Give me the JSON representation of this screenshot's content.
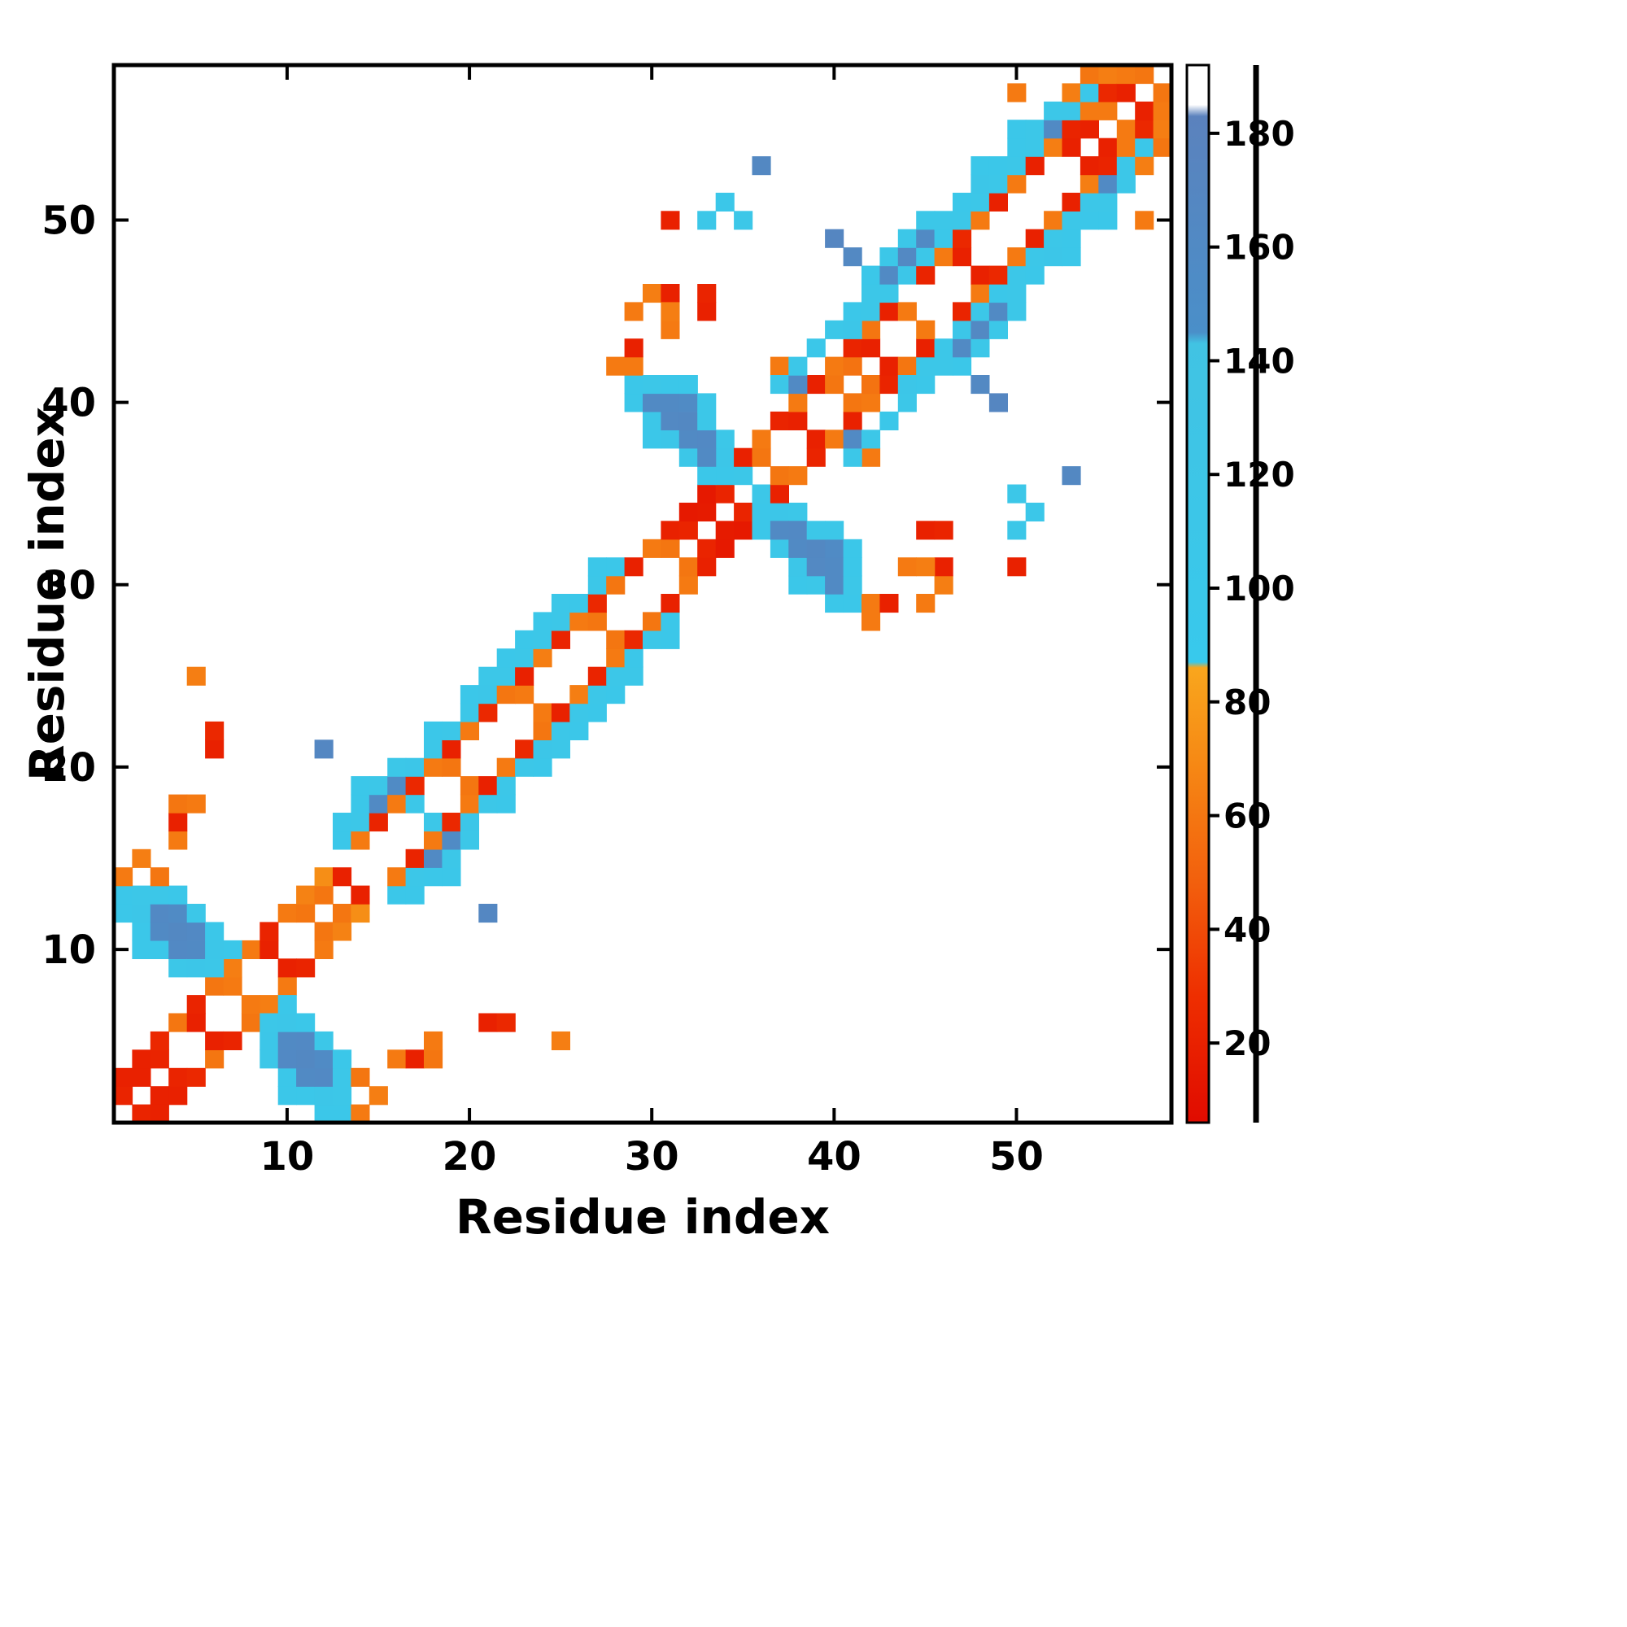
{
  "chart_data": {
    "type": "heatmap",
    "title": "",
    "xlabel": "Residue index",
    "ylabel": "Residue index",
    "x_range": [
      1,
      58
    ],
    "y_range": [
      1,
      58
    ],
    "x_ticks": [
      10,
      20,
      30,
      40,
      50
    ],
    "y_ticks": [
      10,
      20,
      30,
      40,
      50
    ],
    "grid": false,
    "legend": "colorbar-right",
    "symmetric": true,
    "background_value_color": "#ffffff",
    "colorbar": {
      "min": 6,
      "max": 192,
      "ticks": [
        20,
        40,
        60,
        80,
        100,
        120,
        140,
        160,
        180
      ]
    },
    "color_scale": {
      "stops": [
        {
          "v": 6,
          "c": "#e00b00"
        },
        {
          "v": 28,
          "c": "#ee2e00"
        },
        {
          "v": 48,
          "c": "#f25f0d"
        },
        {
          "v": 70,
          "c": "#f68a15"
        },
        {
          "v": 86,
          "c": "#f9a61d"
        },
        {
          "v": 87,
          "c": "#38c9ec"
        },
        {
          "v": 143,
          "c": "#41c3e3"
        },
        {
          "v": 145,
          "c": "#4a8fc9"
        },
        {
          "v": 183,
          "c": "#5b82bd"
        },
        {
          "v": 185,
          "c": "#ffffff"
        },
        {
          "v": 192,
          "c": "#ffffff"
        }
      ]
    },
    "cells": [
      [
        1,
        2,
        22
      ],
      [
        2,
        3,
        20
      ],
      [
        1,
        3,
        20
      ],
      [
        2,
        4,
        20
      ],
      [
        3,
        4,
        22
      ],
      [
        3,
        5,
        24
      ],
      [
        4,
        6,
        60
      ],
      [
        5,
        6,
        20
      ],
      [
        5,
        7,
        22
      ],
      [
        6,
        8,
        60
      ],
      [
        7,
        8,
        62
      ],
      [
        7,
        9,
        64
      ],
      [
        8,
        10,
        62
      ],
      [
        9,
        10,
        20
      ],
      [
        9,
        11,
        22
      ],
      [
        10,
        12,
        62
      ],
      [
        11,
        12,
        60
      ],
      [
        11,
        13,
        66
      ],
      [
        12,
        13,
        60
      ],
      [
        12,
        14,
        72
      ],
      [
        13,
        14,
        20
      ],
      [
        1,
        12,
        108
      ],
      [
        1,
        13,
        104
      ],
      [
        2,
        10,
        104
      ],
      [
        2,
        11,
        106
      ],
      [
        2,
        12,
        112
      ],
      [
        2,
        13,
        110
      ],
      [
        3,
        10,
        108
      ],
      [
        3,
        11,
        160
      ],
      [
        3,
        12,
        162
      ],
      [
        3,
        13,
        110
      ],
      [
        4,
        9,
        110
      ],
      [
        4,
        10,
        162
      ],
      [
        4,
        11,
        166
      ],
      [
        4,
        12,
        158
      ],
      [
        4,
        13,
        108
      ],
      [
        5,
        9,
        112
      ],
      [
        5,
        10,
        160
      ],
      [
        5,
        11,
        162
      ],
      [
        5,
        12,
        110
      ],
      [
        6,
        9,
        110
      ],
      [
        6,
        10,
        112
      ],
      [
        6,
        11,
        108
      ],
      [
        7,
        10,
        108
      ],
      [
        1,
        14,
        62
      ],
      [
        2,
        15,
        64
      ],
      [
        3,
        14,
        60
      ],
      [
        4,
        16,
        62
      ],
      [
        4,
        17,
        20
      ],
      [
        4,
        18,
        60
      ],
      [
        5,
        18,
        62
      ],
      [
        6,
        21,
        20
      ],
      [
        6,
        22,
        24
      ],
      [
        12,
        21,
        168
      ],
      [
        5,
        25,
        64
      ],
      [
        13,
        16,
        108
      ],
      [
        13,
        17,
        106
      ],
      [
        14,
        16,
        62
      ],
      [
        14,
        17,
        110
      ],
      [
        14,
        18,
        108
      ],
      [
        14,
        19,
        106
      ],
      [
        15,
        17,
        22
      ],
      [
        15,
        18,
        160
      ],
      [
        15,
        19,
        110
      ],
      [
        16,
        18,
        62
      ],
      [
        16,
        19,
        158
      ],
      [
        16,
        20,
        110
      ],
      [
        17,
        18,
        110
      ],
      [
        17,
        19,
        24
      ],
      [
        17,
        20,
        112
      ],
      [
        18,
        20,
        62
      ],
      [
        18,
        21,
        110
      ],
      [
        18,
        22,
        108
      ],
      [
        19,
        20,
        60
      ],
      [
        19,
        21,
        20
      ],
      [
        19,
        22,
        110
      ],
      [
        20,
        22,
        62
      ],
      [
        20,
        23,
        110
      ],
      [
        20,
        24,
        108
      ],
      [
        21,
        23,
        24
      ],
      [
        21,
        24,
        112
      ],
      [
        21,
        25,
        110
      ],
      [
        22,
        24,
        60
      ],
      [
        22,
        25,
        110
      ],
      [
        22,
        26,
        108
      ],
      [
        23,
        24,
        62
      ],
      [
        23,
        25,
        20
      ],
      [
        23,
        26,
        110
      ],
      [
        23,
        27,
        108
      ],
      [
        24,
        26,
        64
      ],
      [
        24,
        27,
        110
      ],
      [
        24,
        28,
        106
      ],
      [
        25,
        27,
        22
      ],
      [
        25,
        28,
        110
      ],
      [
        25,
        29,
        110
      ],
      [
        26,
        28,
        62
      ],
      [
        26,
        29,
        108
      ],
      [
        27,
        28,
        60
      ],
      [
        27,
        29,
        24
      ],
      [
        27,
        30,
        110
      ],
      [
        27,
        31,
        106
      ],
      [
        28,
        30,
        60
      ],
      [
        28,
        31,
        108
      ],
      [
        29,
        31,
        20
      ],
      [
        30,
        32,
        62
      ],
      [
        31,
        32,
        60
      ],
      [
        31,
        33,
        20
      ],
      [
        32,
        33,
        22
      ],
      [
        32,
        34,
        15
      ],
      [
        33,
        34,
        16
      ],
      [
        33,
        35,
        15
      ],
      [
        34,
        35,
        22
      ],
      [
        34,
        36,
        108
      ],
      [
        34,
        37,
        112
      ],
      [
        34,
        38,
        110
      ],
      [
        35,
        36,
        110
      ],
      [
        35,
        37,
        20
      ],
      [
        36,
        37,
        60
      ],
      [
        36,
        38,
        62
      ],
      [
        37,
        39,
        22
      ],
      [
        38,
        39,
        20
      ],
      [
        38,
        40,
        62
      ],
      [
        39,
        41,
        20
      ],
      [
        40,
        41,
        60
      ],
      [
        40,
        42,
        62
      ],
      [
        41,
        42,
        58
      ],
      [
        41,
        43,
        22
      ],
      [
        42,
        43,
        20
      ],
      [
        42,
        44,
        60
      ],
      [
        29,
        40,
        108
      ],
      [
        29,
        41,
        104
      ],
      [
        29,
        42,
        62
      ],
      [
        30,
        38,
        106
      ],
      [
        30,
        39,
        110
      ],
      [
        30,
        40,
        160
      ],
      [
        30,
        41,
        110
      ],
      [
        31,
        38,
        112
      ],
      [
        31,
        39,
        164
      ],
      [
        31,
        40,
        160
      ],
      [
        31,
        41,
        108
      ],
      [
        32,
        37,
        110
      ],
      [
        32,
        38,
        160
      ],
      [
        32,
        39,
        166
      ],
      [
        32,
        40,
        158
      ],
      [
        32,
        41,
        106
      ],
      [
        33,
        36,
        108
      ],
      [
        33,
        37,
        160
      ],
      [
        33,
        38,
        162
      ],
      [
        33,
        39,
        110
      ],
      [
        33,
        40,
        110
      ],
      [
        28,
        42,
        62
      ],
      [
        29,
        43,
        20
      ],
      [
        29,
        45,
        62
      ],
      [
        30,
        46,
        64
      ],
      [
        31,
        46,
        20
      ],
      [
        31,
        50,
        20
      ],
      [
        33,
        50,
        110
      ],
      [
        34,
        51,
        106
      ],
      [
        36,
        53,
        166
      ],
      [
        40,
        49,
        170
      ],
      [
        41,
        48,
        164
      ],
      [
        35,
        50,
        110
      ],
      [
        31,
        44,
        62
      ],
      [
        31,
        45,
        64
      ],
      [
        33,
        45,
        20
      ],
      [
        33,
        46,
        22
      ],
      [
        37,
        42,
        62
      ],
      [
        37,
        41,
        110
      ],
      [
        38,
        41,
        160
      ],
      [
        38,
        42,
        110
      ],
      [
        39,
        43,
        106
      ],
      [
        40,
        44,
        110
      ],
      [
        41,
        44,
        112
      ],
      [
        41,
        45,
        108
      ],
      [
        42,
        45,
        110
      ],
      [
        42,
        46,
        110
      ],
      [
        42,
        47,
        104
      ],
      [
        43,
        45,
        20
      ],
      [
        43,
        46,
        110
      ],
      [
        43,
        47,
        160
      ],
      [
        43,
        48,
        110
      ],
      [
        44,
        45,
        62
      ],
      [
        44,
        47,
        112
      ],
      [
        44,
        48,
        164
      ],
      [
        44,
        49,
        110
      ],
      [
        45,
        47,
        22
      ],
      [
        45,
        48,
        110
      ],
      [
        45,
        49,
        160
      ],
      [
        45,
        50,
        110
      ],
      [
        46,
        48,
        62
      ],
      [
        46,
        49,
        106
      ],
      [
        46,
        50,
        110
      ],
      [
        47,
        48,
        20
      ],
      [
        47,
        49,
        24
      ],
      [
        47,
        50,
        110
      ],
      [
        47,
        51,
        108
      ],
      [
        48,
        50,
        62
      ],
      [
        48,
        51,
        110
      ],
      [
        48,
        52,
        114
      ],
      [
        48,
        53,
        106
      ],
      [
        49,
        51,
        20
      ],
      [
        49,
        52,
        110
      ],
      [
        49,
        53,
        108
      ],
      [
        50,
        52,
        62
      ],
      [
        50,
        53,
        110
      ],
      [
        50,
        54,
        108
      ],
      [
        50,
        55,
        106
      ],
      [
        50,
        57,
        62
      ],
      [
        51,
        53,
        20
      ],
      [
        51,
        54,
        110
      ],
      [
        51,
        55,
        110
      ],
      [
        52,
        54,
        64
      ],
      [
        52,
        55,
        160
      ],
      [
        52,
        56,
        110
      ],
      [
        53,
        54,
        20
      ],
      [
        53,
        55,
        22
      ],
      [
        53,
        56,
        110
      ],
      [
        53,
        57,
        64
      ],
      [
        54,
        55,
        20
      ],
      [
        54,
        56,
        62
      ],
      [
        54,
        57,
        108
      ],
      [
        54,
        58,
        60
      ],
      [
        55,
        56,
        62
      ],
      [
        55,
        57,
        24
      ],
      [
        55,
        58,
        64
      ],
      [
        56,
        57,
        20
      ],
      [
        56,
        58,
        62
      ],
      [
        57,
        58,
        60
      ]
    ]
  }
}
